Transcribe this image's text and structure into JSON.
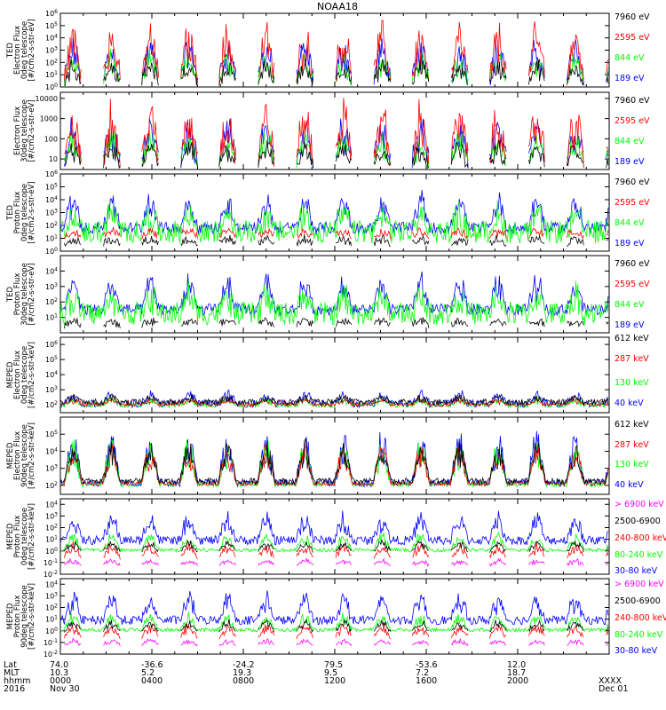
{
  "title": "NOAA18",
  "colors": {
    "black": "#000000",
    "red": "#ff0000",
    "green": "#00ff00",
    "blue": "#0000ff",
    "magenta": "#ff00ff"
  },
  "chart_data": [
    {
      "type": "line",
      "instrument": "TED",
      "ylabel": [
        "TED",
        "Electron Flux",
        "0deg telescope",
        "[#/cm2-s-str-eV]"
      ],
      "ytick_labels": [
        "10^0",
        "10^1",
        "10^2",
        "10^3",
        "10^4",
        "10^5",
        "10^6"
      ],
      "yscale": "log",
      "ylim": [
        1,
        1000000
      ],
      "series": [
        {
          "name": "7960 eV",
          "color": "#000000"
        },
        {
          "name": "2595 eV",
          "color": "#ff0000"
        },
        {
          "name": "844 eV",
          "color": "#00ff00"
        },
        {
          "name": "189 eV",
          "color": "#0000ff"
        }
      ]
    },
    {
      "type": "line",
      "instrument": "TED",
      "ylabel": [
        "",
        "Electron Flux",
        "30deg telescope",
        "[#/cm2-s-str-eV]"
      ],
      "ytick_labels": [
        "10",
        "100",
        "1000",
        "10000"
      ],
      "yscale": "log",
      "ylim": [
        3,
        20000
      ],
      "series": [
        {
          "name": "7960 eV",
          "color": "#000000"
        },
        {
          "name": "2595 eV",
          "color": "#ff0000"
        },
        {
          "name": "844 eV",
          "color": "#00ff00"
        },
        {
          "name": "189 eV",
          "color": "#0000ff"
        }
      ]
    },
    {
      "type": "line",
      "instrument": "TED",
      "ylabel": [
        "TED",
        "Proton Flux",
        "0deg telescope",
        "[#/cm2-s-str-eV]"
      ],
      "ytick_labels": [
        "10^0",
        "10^1",
        "10^2",
        "10^3",
        "10^4",
        "10^5",
        "10^6"
      ],
      "yscale": "log",
      "ylim": [
        1,
        1000000
      ],
      "series": [
        {
          "name": "7960 eV",
          "color": "#000000"
        },
        {
          "name": "2595 eV",
          "color": "#ff0000"
        },
        {
          "name": "844 eV",
          "color": "#00ff00"
        },
        {
          "name": "189 eV",
          "color": "#0000ff"
        }
      ]
    },
    {
      "type": "line",
      "instrument": "TED",
      "ylabel": [
        "TED",
        "Proton Flux",
        "30deg telescope",
        "[#/cm2-s-str-eV]"
      ],
      "ytick_labels": [
        "10^1",
        "10^2",
        "10^3",
        "10^4"
      ],
      "yscale": "log",
      "ylim": [
        1,
        100000
      ],
      "series": [
        {
          "name": "7960 eV",
          "color": "#000000"
        },
        {
          "name": "2595 eV",
          "color": "#ff0000"
        },
        {
          "name": "844 eV",
          "color": "#00ff00"
        },
        {
          "name": "189 eV",
          "color": "#0000ff"
        }
      ]
    },
    {
      "type": "line",
      "instrument": "MEPED",
      "ylabel": [
        "MEPED",
        "Electron Flux",
        "0deg telescope",
        "[#/cm2-s-str-keV]"
      ],
      "ytick_labels": [
        "10^2",
        "10^3",
        "10^4",
        "10^5",
        "10^6"
      ],
      "yscale": "log",
      "ylim": [
        30,
        3000000
      ],
      "series": [
        {
          "name": "612 keV",
          "color": "#000000"
        },
        {
          "name": "287 keV",
          "color": "#ff0000"
        },
        {
          "name": "130 keV",
          "color": "#00ff00"
        },
        {
          "name": "40 keV",
          "color": "#0000ff"
        }
      ]
    },
    {
      "type": "line",
      "instrument": "MEPED",
      "ylabel": [
        "MEPED",
        "Electron Flux",
        "90deg telescope",
        "[#/cm2-s-str-keV]"
      ],
      "ytick_labels": [
        "10^2",
        "10^3",
        "10^4",
        "10^5"
      ],
      "yscale": "log",
      "ylim": [
        30,
        1000000
      ],
      "series": [
        {
          "name": "612 keV",
          "color": "#000000"
        },
        {
          "name": "287 keV",
          "color": "#ff0000"
        },
        {
          "name": "130 keV",
          "color": "#00ff00"
        },
        {
          "name": "40 keV",
          "color": "#0000ff"
        }
      ]
    },
    {
      "type": "line",
      "instrument": "MEPED",
      "ylabel": [
        "MEPED",
        "Proton Flux",
        "0deg telescope",
        "[#/cm2-s-str-keV]"
      ],
      "ytick_labels": [
        "10^-2",
        "10^-1",
        "10^0",
        "10^1",
        "10^2",
        "10^3",
        "10^4"
      ],
      "yscale": "log",
      "ylim": [
        0.01,
        30000
      ],
      "series": [
        {
          "name": "> 6900 keV",
          "color": "#ff00ff"
        },
        {
          "name": "2500-6900",
          "color": "#000000"
        },
        {
          "name": "240-800 keV",
          "color": "#ff0000"
        },
        {
          "name": "80-240 keV",
          "color": "#00ff00"
        },
        {
          "name": "30-80 keV",
          "color": "#0000ff"
        }
      ]
    },
    {
      "type": "line",
      "instrument": "MEPED",
      "ylabel": [
        "MEPED",
        "Proton Flux",
        "90deg telescope",
        "[#/cm2-s-str-keV]"
      ],
      "ytick_labels": [
        "10^-2",
        "10^-1",
        "10^0",
        "10^1",
        "10^2",
        "10^3",
        "10^4"
      ],
      "yscale": "log",
      "ylim": [
        0.01,
        30000
      ],
      "series": [
        {
          "name": "> 6900 keV",
          "color": "#ff00ff"
        },
        {
          "name": "2500-6900",
          "color": "#000000"
        },
        {
          "name": "240-800 keV",
          "color": "#ff0000"
        },
        {
          "name": "80-240 keV",
          "color": "#00ff00"
        },
        {
          "name": "30-80 keV",
          "color": "#0000ff"
        }
      ]
    }
  ],
  "footer": {
    "row_labels": [
      "Lat",
      "MLT",
      "hhmm",
      "2016"
    ],
    "columns": [
      {
        "lat": "74.0",
        "mlt": "10.3",
        "hhmm": "0000",
        "date": "Nov 30"
      },
      {
        "lat": "-36.6",
        "mlt": "5.2",
        "hhmm": "0400",
        "date": ""
      },
      {
        "lat": "-24.2",
        "mlt": "19.3",
        "hhmm": "0800",
        "date": ""
      },
      {
        "lat": "79.5",
        "mlt": "9.5",
        "hhmm": "1200",
        "date": ""
      },
      {
        "lat": "-53.6",
        "mlt": "7.2",
        "hhmm": "1600",
        "date": ""
      },
      {
        "lat": "12.0",
        "mlt": "18.7",
        "hhmm": "2000",
        "date": ""
      },
      {
        "lat": "",
        "mlt": "",
        "hhmm": "XXXX",
        "date": "Dec 01"
      }
    ]
  }
}
